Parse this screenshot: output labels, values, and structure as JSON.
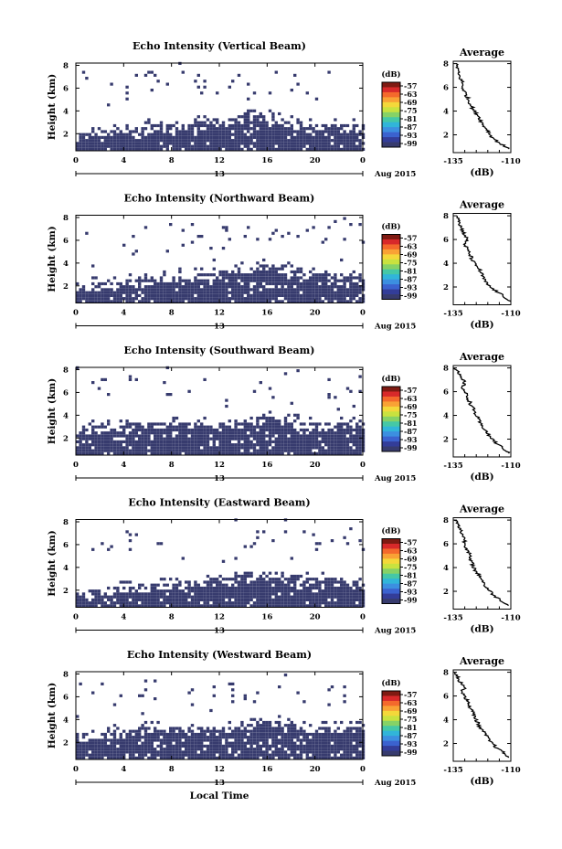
{
  "figure": {
    "shared_xlabel": "Local Time",
    "date_label": "Aug 2015",
    "day_label": "13",
    "colorbar": {
      "unit": "(dB)",
      "levels": [
        "-57",
        "-63",
        "-69",
        "-75",
        "-81",
        "-87",
        "-93",
        "-99"
      ],
      "colors": [
        "#7f1a12",
        "#d8292a",
        "#f4692c",
        "#f9a235",
        "#f4d83a",
        "#c9e23f",
        "#86d266",
        "#45c8a6",
        "#31b5d9",
        "#3c8fe0",
        "#3b62cf",
        "#333d99",
        "#373b6e"
      ]
    },
    "xticks": [
      "0",
      "4",
      "8",
      "12",
      "16",
      "20",
      "0"
    ],
    "yticks": [
      "2",
      "4",
      "6",
      "8"
    ],
    "avg_title": "Average",
    "avg_xlabel": "(dB)",
    "ylabel": "Height (km)",
    "fill_color": "#373b6e"
  },
  "chart_data": [
    {
      "type": "heatmap",
      "title": "Echo Intensity (Vertical Beam)",
      "xlabel": "",
      "ylabel": "Height (km)",
      "x_range_hours": [
        0,
        24
      ],
      "ylim": [
        0.5,
        8.2
      ],
      "echo_top_km": [
        2.0,
        2.1,
        2.2,
        2.3,
        2.4,
        2.5,
        2.6,
        2.6,
        2.7,
        2.8,
        2.9,
        3.1,
        3.3,
        3.5,
        3.8,
        3.6,
        3.4,
        3.0,
        2.8,
        2.6,
        2.6,
        2.7,
        2.8,
        2.6
      ],
      "profile": {
        "title": "Average",
        "xlabel": "(dB)",
        "xticks": [
          "-135",
          "-110"
        ],
        "xlim": [
          -135,
          -110
        ],
        "ylim": [
          0.5,
          8.2
        ],
        "height_km": [
          8.0,
          7.6,
          7.2,
          6.8,
          6.4,
          6.0,
          5.6,
          5.2,
          4.8,
          4.4,
          4.0,
          3.6,
          3.2,
          2.8,
          2.4,
          2.0,
          1.6,
          1.2,
          0.8
        ],
        "value_db": [
          -134,
          -133,
          -133,
          -132,
          -131,
          -131,
          -130,
          -129,
          -128,
          -127,
          -126,
          -124,
          -123,
          -122,
          -120,
          -119,
          -117,
          -114,
          -111
        ]
      }
    },
    {
      "type": "heatmap",
      "title": "Echo Intensity (Northward Beam)",
      "xlabel": "",
      "ylabel": "Height (km)",
      "x_range_hours": [
        0,
        24
      ],
      "ylim": [
        0.5,
        8.2
      ],
      "echo_top_km": [
        2.0,
        2.1,
        2.2,
        2.3,
        2.4,
        2.5,
        2.6,
        2.7,
        2.8,
        2.9,
        3.0,
        3.1,
        3.3,
        3.5,
        3.6,
        3.7,
        3.6,
        3.4,
        3.2,
        3.1,
        3.0,
        3.0,
        3.0,
        2.9
      ],
      "profile": {
        "title": "Average",
        "xlabel": "(dB)",
        "xticks": [
          "-135",
          "-110"
        ],
        "xlim": [
          -135,
          -110
        ],
        "ylim": [
          0.5,
          8.2
        ],
        "height_km": [
          8.0,
          7.6,
          7.2,
          6.8,
          6.4,
          6.0,
          5.6,
          5.2,
          4.8,
          4.4,
          4.0,
          3.6,
          3.2,
          2.8,
          2.4,
          2.0,
          1.6,
          1.2,
          0.8
        ],
        "value_db": [
          -133,
          -132,
          -132,
          -131,
          -130,
          -129,
          -130,
          -129,
          -128,
          -127,
          -126,
          -124,
          -123,
          -122,
          -121,
          -119,
          -116,
          -113,
          -110
        ]
      }
    },
    {
      "type": "heatmap",
      "title": "Echo Intensity (Southward Beam)",
      "xlabel": "",
      "ylabel": "Height (km)",
      "x_range_hours": [
        0,
        24
      ],
      "ylim": [
        0.5,
        8.2
      ],
      "echo_top_km": [
        2.8,
        2.9,
        3.0,
        3.0,
        3.1,
        3.2,
        3.2,
        3.2,
        3.3,
        3.3,
        3.2,
        3.2,
        3.3,
        3.4,
        3.6,
        3.8,
        3.8,
        3.6,
        3.4,
        3.2,
        3.1,
        3.1,
        3.2,
        3.2
      ],
      "profile": {
        "title": "Average",
        "xlabel": "(dB)",
        "xticks": [
          "-135",
          "-110"
        ],
        "xlim": [
          -135,
          -110
        ],
        "ylim": [
          0.5,
          8.2
        ],
        "height_km": [
          8.0,
          7.6,
          7.2,
          6.8,
          6.4,
          6.0,
          5.6,
          5.2,
          4.8,
          4.4,
          4.0,
          3.6,
          3.2,
          2.8,
          2.4,
          2.0,
          1.6,
          1.2,
          0.8
        ],
        "value_db": [
          -134,
          -133,
          -132,
          -130,
          -131,
          -130,
          -129,
          -128,
          -127,
          -126,
          -125,
          -124,
          -123,
          -121,
          -120,
          -118,
          -116,
          -113,
          -111
        ]
      }
    },
    {
      "type": "heatmap",
      "title": "Echo Intensity (Eastward Beam)",
      "xlabel": "",
      "ylabel": "Height (km)",
      "x_range_hours": [
        0,
        24
      ],
      "ylim": [
        0.5,
        8.2
      ],
      "echo_top_km": [
        1.8,
        1.9,
        2.0,
        2.2,
        2.3,
        2.4,
        2.5,
        2.5,
        2.6,
        2.7,
        2.8,
        2.9,
        3.0,
        3.2,
        3.4,
        3.5,
        3.5,
        3.3,
        3.1,
        3.0,
        2.9,
        2.9,
        2.8,
        2.6
      ],
      "profile": {
        "title": "Average",
        "xlabel": "(dB)",
        "xticks": [
          "-135",
          "-110"
        ],
        "xlim": [
          -135,
          -110
        ],
        "ylim": [
          0.5,
          8.2
        ],
        "height_km": [
          8.0,
          7.6,
          7.2,
          6.8,
          6.4,
          6.0,
          5.6,
          5.2,
          4.8,
          4.4,
          4.0,
          3.6,
          3.2,
          2.8,
          2.4,
          2.0,
          1.6,
          1.2,
          0.8
        ],
        "value_db": [
          -134,
          -133,
          -132,
          -131,
          -130,
          -130,
          -129,
          -128,
          -128,
          -127,
          -126,
          -125,
          -123,
          -122,
          -121,
          -119,
          -117,
          -114,
          -111
        ]
      }
    },
    {
      "type": "heatmap",
      "title": "Echo Intensity (Westward Beam)",
      "xlabel": "Local Time",
      "ylabel": "Height (km)",
      "x_range_hours": [
        0,
        24
      ],
      "ylim": [
        0.5,
        8.2
      ],
      "echo_top_km": [
        2.6,
        2.7,
        2.8,
        2.9,
        3.0,
        3.1,
        3.2,
        3.2,
        3.2,
        3.2,
        3.1,
        3.2,
        3.3,
        3.4,
        3.6,
        3.8,
        3.8,
        3.6,
        3.5,
        3.3,
        3.2,
        3.2,
        3.3,
        3.2
      ],
      "profile": {
        "title": "Average",
        "xlabel": "(dB)",
        "xticks": [
          "-135",
          "-110"
        ],
        "xlim": [
          -135,
          -110
        ],
        "ylim": [
          0.5,
          8.2
        ],
        "height_km": [
          8.0,
          7.6,
          7.2,
          6.8,
          6.4,
          6.0,
          5.6,
          5.2,
          4.8,
          4.4,
          4.0,
          3.6,
          3.2,
          2.8,
          2.4,
          2.0,
          1.6,
          1.2,
          0.8
        ],
        "value_db": [
          -134,
          -133,
          -132,
          -130,
          -131,
          -130,
          -129,
          -128,
          -127,
          -126,
          -125,
          -124,
          -123,
          -121,
          -120,
          -118,
          -116,
          -113,
          -111
        ]
      }
    }
  ]
}
